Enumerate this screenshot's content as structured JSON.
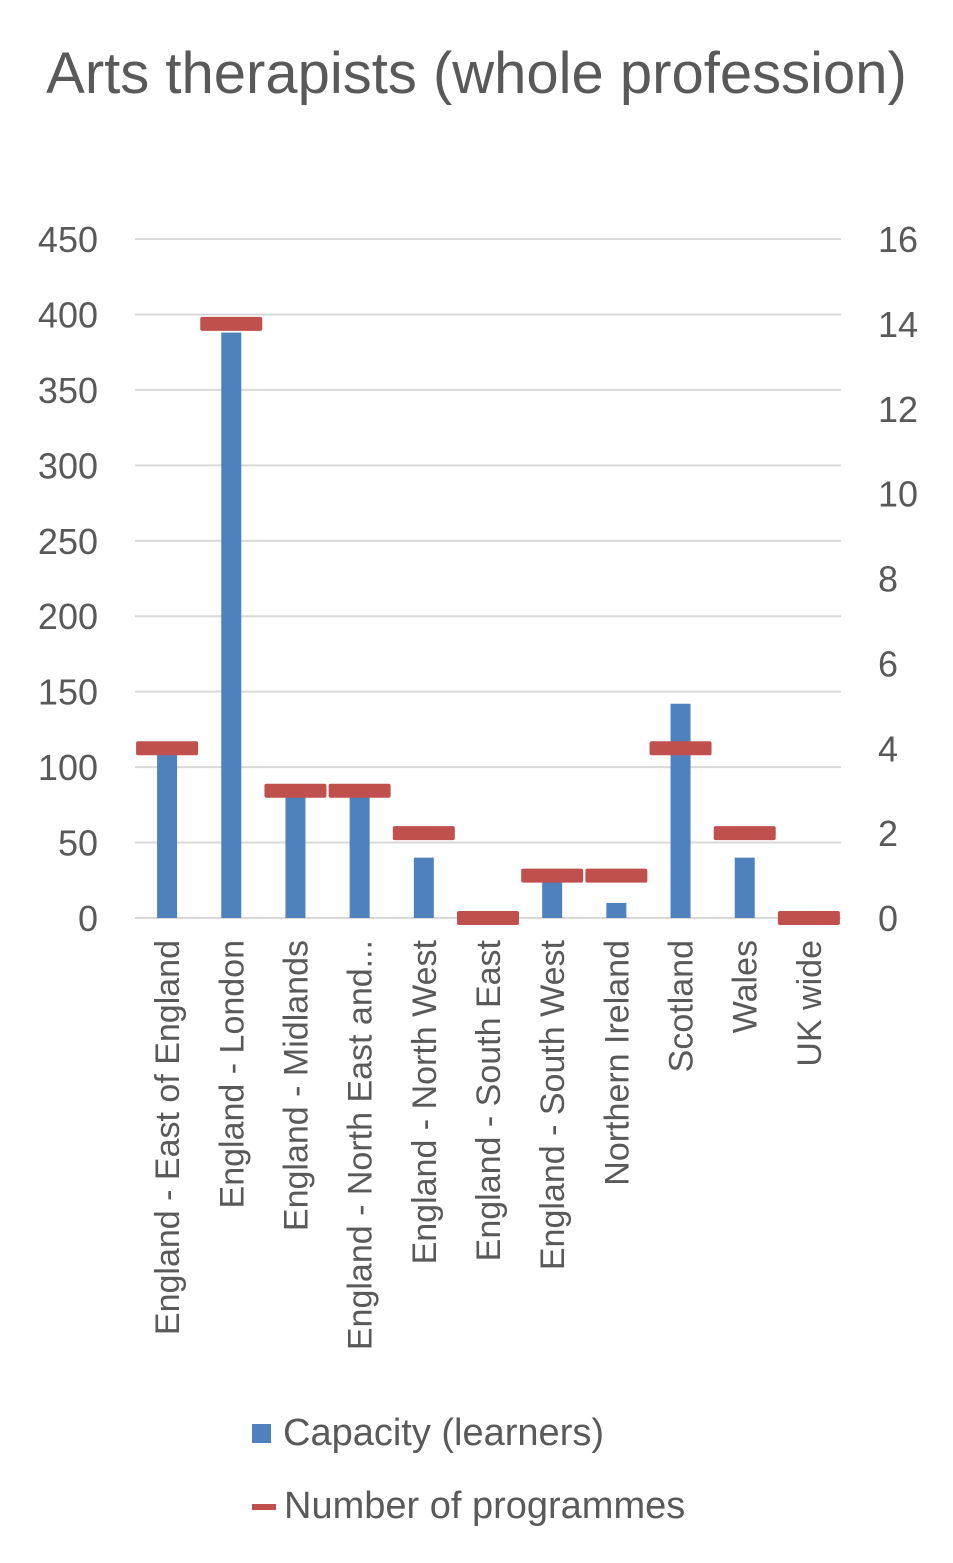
{
  "chart_data": {
    "type": "bar",
    "title": "Arts therapists (whole profession)",
    "categories": [
      "England - East of England",
      "England - London",
      "England - Midlands",
      "England - North East and...",
      "England - North West",
      "England - South East",
      "England - South West",
      "Northern Ireland",
      "Scotland",
      "Wales",
      "UK wide"
    ],
    "series": [
      {
        "name": "Capacity (learners)",
        "type": "bar",
        "axis": "left",
        "color": "#4f81bd",
        "values": [
          108,
          388,
          80,
          80,
          40,
          0,
          24,
          10,
          142,
          40,
          0
        ]
      },
      {
        "name": "Number of programmes",
        "type": "marker",
        "axis": "right",
        "color": "#c0504d",
        "values": [
          4,
          14,
          3,
          3,
          2,
          0,
          1,
          1,
          4,
          2,
          0
        ]
      }
    ],
    "y_left": {
      "min": 0,
      "max": 450,
      "ticks": [
        "0",
        "50",
        "100",
        "150",
        "200",
        "250",
        "300",
        "350",
        "400",
        "450"
      ]
    },
    "y_right": {
      "min": 0,
      "max": 16,
      "ticks": [
        "0",
        "2",
        "4",
        "6",
        "8",
        "10",
        "12",
        "14",
        "16"
      ]
    },
    "grid": true,
    "legend": "bottom"
  }
}
